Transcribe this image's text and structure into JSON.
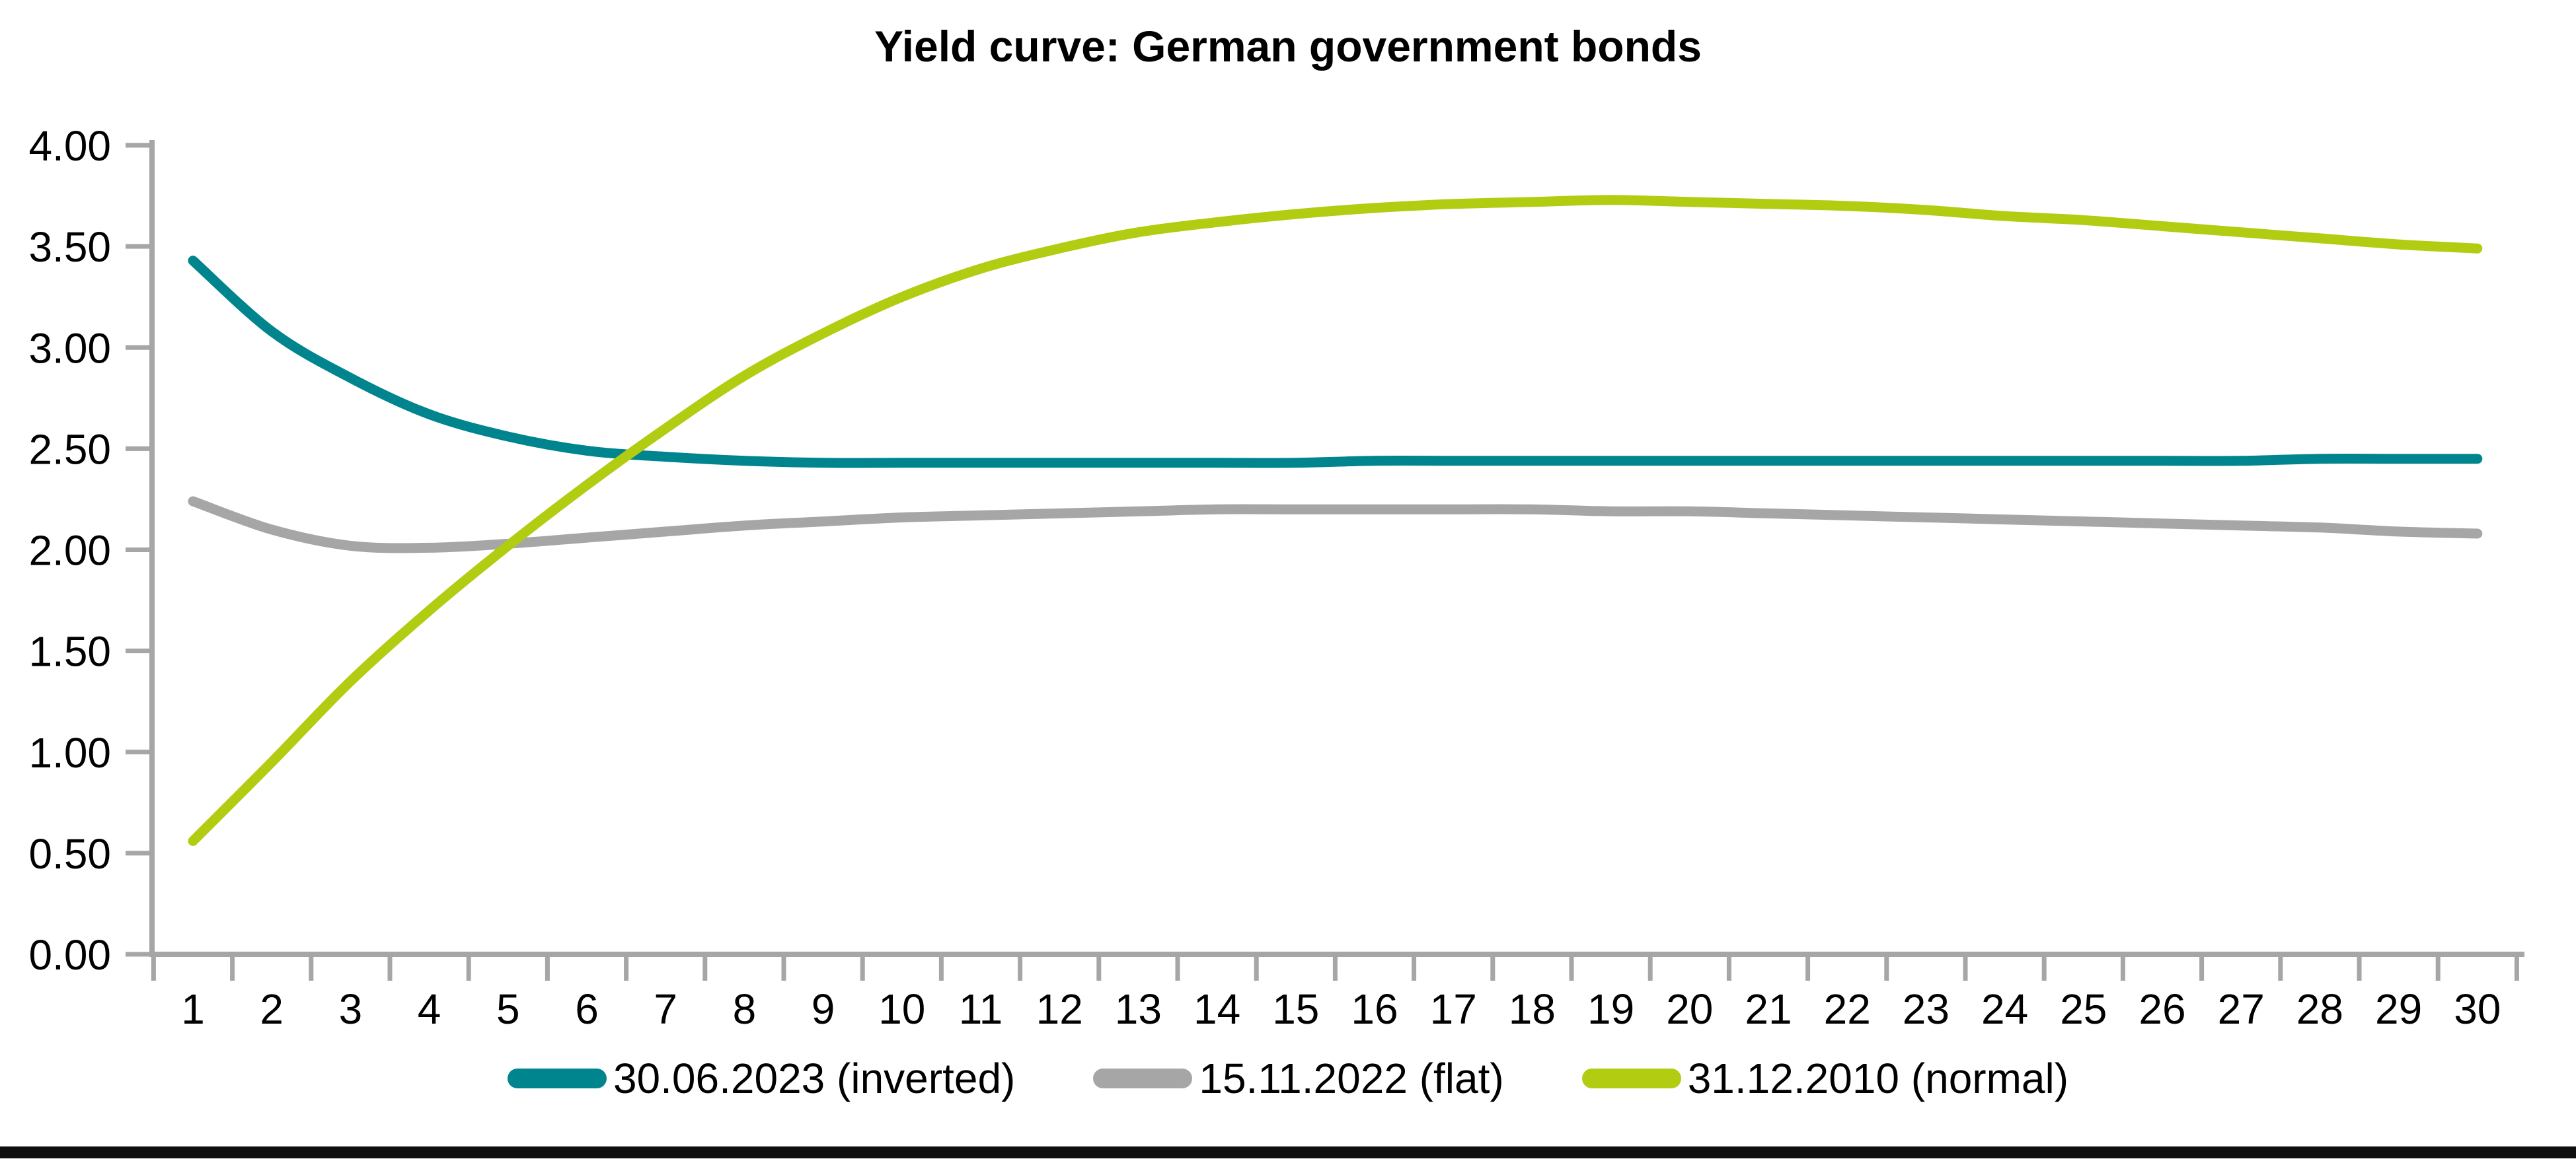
{
  "page": {
    "background": "#FFFFFF",
    "bottom_rule_color": "#0E0E0E"
  },
  "chart_data": {
    "type": "line",
    "title": "Yield curve: German government bonds",
    "xlabel": "",
    "ylabel": "",
    "x": [
      1,
      2,
      3,
      4,
      5,
      6,
      7,
      8,
      9,
      10,
      11,
      12,
      13,
      14,
      15,
      16,
      17,
      18,
      19,
      20,
      21,
      22,
      23,
      24,
      25,
      26,
      27,
      28,
      29,
      30
    ],
    "ylim": [
      0,
      4
    ],
    "y_ticks": [
      4.0,
      3.5,
      3.0,
      2.5,
      2.0,
      1.5,
      1.0,
      0.5,
      0.0
    ],
    "y_tick_labels": [
      "4.00",
      "3.50",
      "3.00",
      "2.50",
      "2.00",
      "1.50",
      "1.00",
      "0.50",
      "0.00"
    ],
    "grid": false,
    "smoothed": true,
    "axis_color": "#A6A6A6",
    "legend_position": "bottom-center",
    "series": [
      {
        "name": "30.06.2023 (inverted)",
        "color": "#00858F",
        "values": [
          3.43,
          3.08,
          2.85,
          2.67,
          2.56,
          2.49,
          2.46,
          2.44,
          2.43,
          2.43,
          2.43,
          2.43,
          2.43,
          2.43,
          2.43,
          2.44,
          2.44,
          2.44,
          2.44,
          2.44,
          2.44,
          2.44,
          2.44,
          2.44,
          2.44,
          2.44,
          2.44,
          2.45,
          2.45,
          2.45
        ]
      },
      {
        "name": "15.11.2022 (flat)",
        "color": "#A6A6A6",
        "values": [
          2.24,
          2.1,
          2.02,
          2.01,
          2.03,
          2.06,
          2.09,
          2.12,
          2.14,
          2.16,
          2.17,
          2.18,
          2.19,
          2.2,
          2.2,
          2.2,
          2.2,
          2.2,
          2.19,
          2.19,
          2.18,
          2.17,
          2.16,
          2.15,
          2.14,
          2.13,
          2.12,
          2.11,
          2.09,
          2.08
        ]
      },
      {
        "name": "31.12.2010 (normal)",
        "color": "#B2CC12",
        "values": [
          0.56,
          0.95,
          1.35,
          1.7,
          2.02,
          2.32,
          2.6,
          2.86,
          3.07,
          3.25,
          3.39,
          3.49,
          3.57,
          3.62,
          3.66,
          3.69,
          3.71,
          3.72,
          3.73,
          3.72,
          3.71,
          3.7,
          3.68,
          3.65,
          3.63,
          3.6,
          3.57,
          3.54,
          3.51,
          3.49
        ]
      }
    ]
  }
}
